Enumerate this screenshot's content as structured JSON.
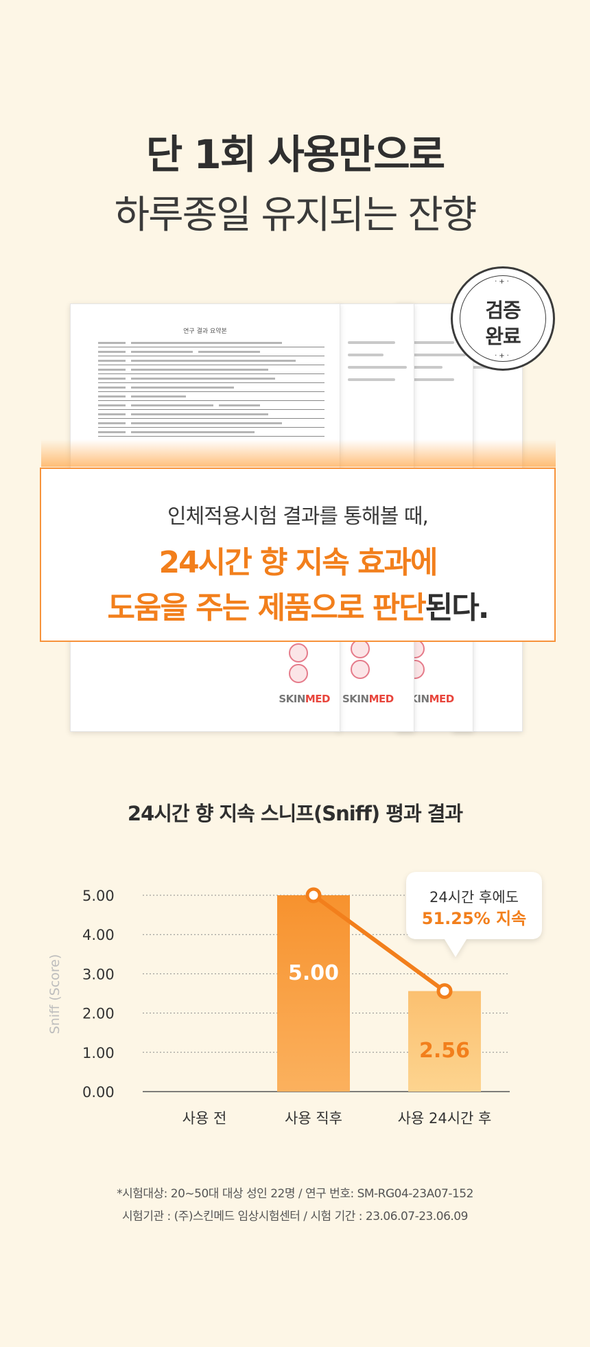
{
  "headline": {
    "line1": "단 1회 사용만으로",
    "line2": "하루종일 유지되는 잔향"
  },
  "documents": {
    "doc_title": "연구 결과 요약본",
    "brand_prefix": "SKIN",
    "brand_suffix": "MED"
  },
  "stamp": {
    "line1": "검증",
    "line2": "완료",
    "dots": "·+·"
  },
  "callout": {
    "line1": "인체적용시험 결과를 통해볼 때,",
    "line2": "24시간 향 지속 효과에",
    "line3_highlight": "도움을 주는 제품으로 판단",
    "line3_tail": "된다."
  },
  "chart_title": "24시간 향 지속 스니프(Sniff) 평과 결과",
  "chart_data": {
    "type": "bar",
    "categories": [
      "사용 전",
      "사용 직후",
      "사용 24시간 후"
    ],
    "values": [
      null,
      5.0,
      2.56
    ],
    "value_labels": [
      "",
      "5.00",
      "2.56"
    ],
    "ylabel": "Sniff (Score)",
    "ylim": [
      0,
      5
    ],
    "yticks": [
      "0.00",
      "1.00",
      "2.00",
      "3.00",
      "4.00",
      "5.00"
    ],
    "grid": true,
    "line_overlay": true,
    "annotation": {
      "line1": "24시간 후에도",
      "line2": "51.25% 지속"
    },
    "colors": {
      "bar_primary": "#f7922e",
      "bar_secondary": "#fbc070",
      "line": "#f27f1c",
      "accent_text": "#f27f1c"
    }
  },
  "footnote": {
    "line1": "*시험대상: 20~50대 대상 성인 22명 / 연구 번호: SM-RG04-23A07-152",
    "line2": "시험기관 : (주)스킨메드 임상시험센터 / 시험 기간 : 23.06.07-23.06.09"
  }
}
